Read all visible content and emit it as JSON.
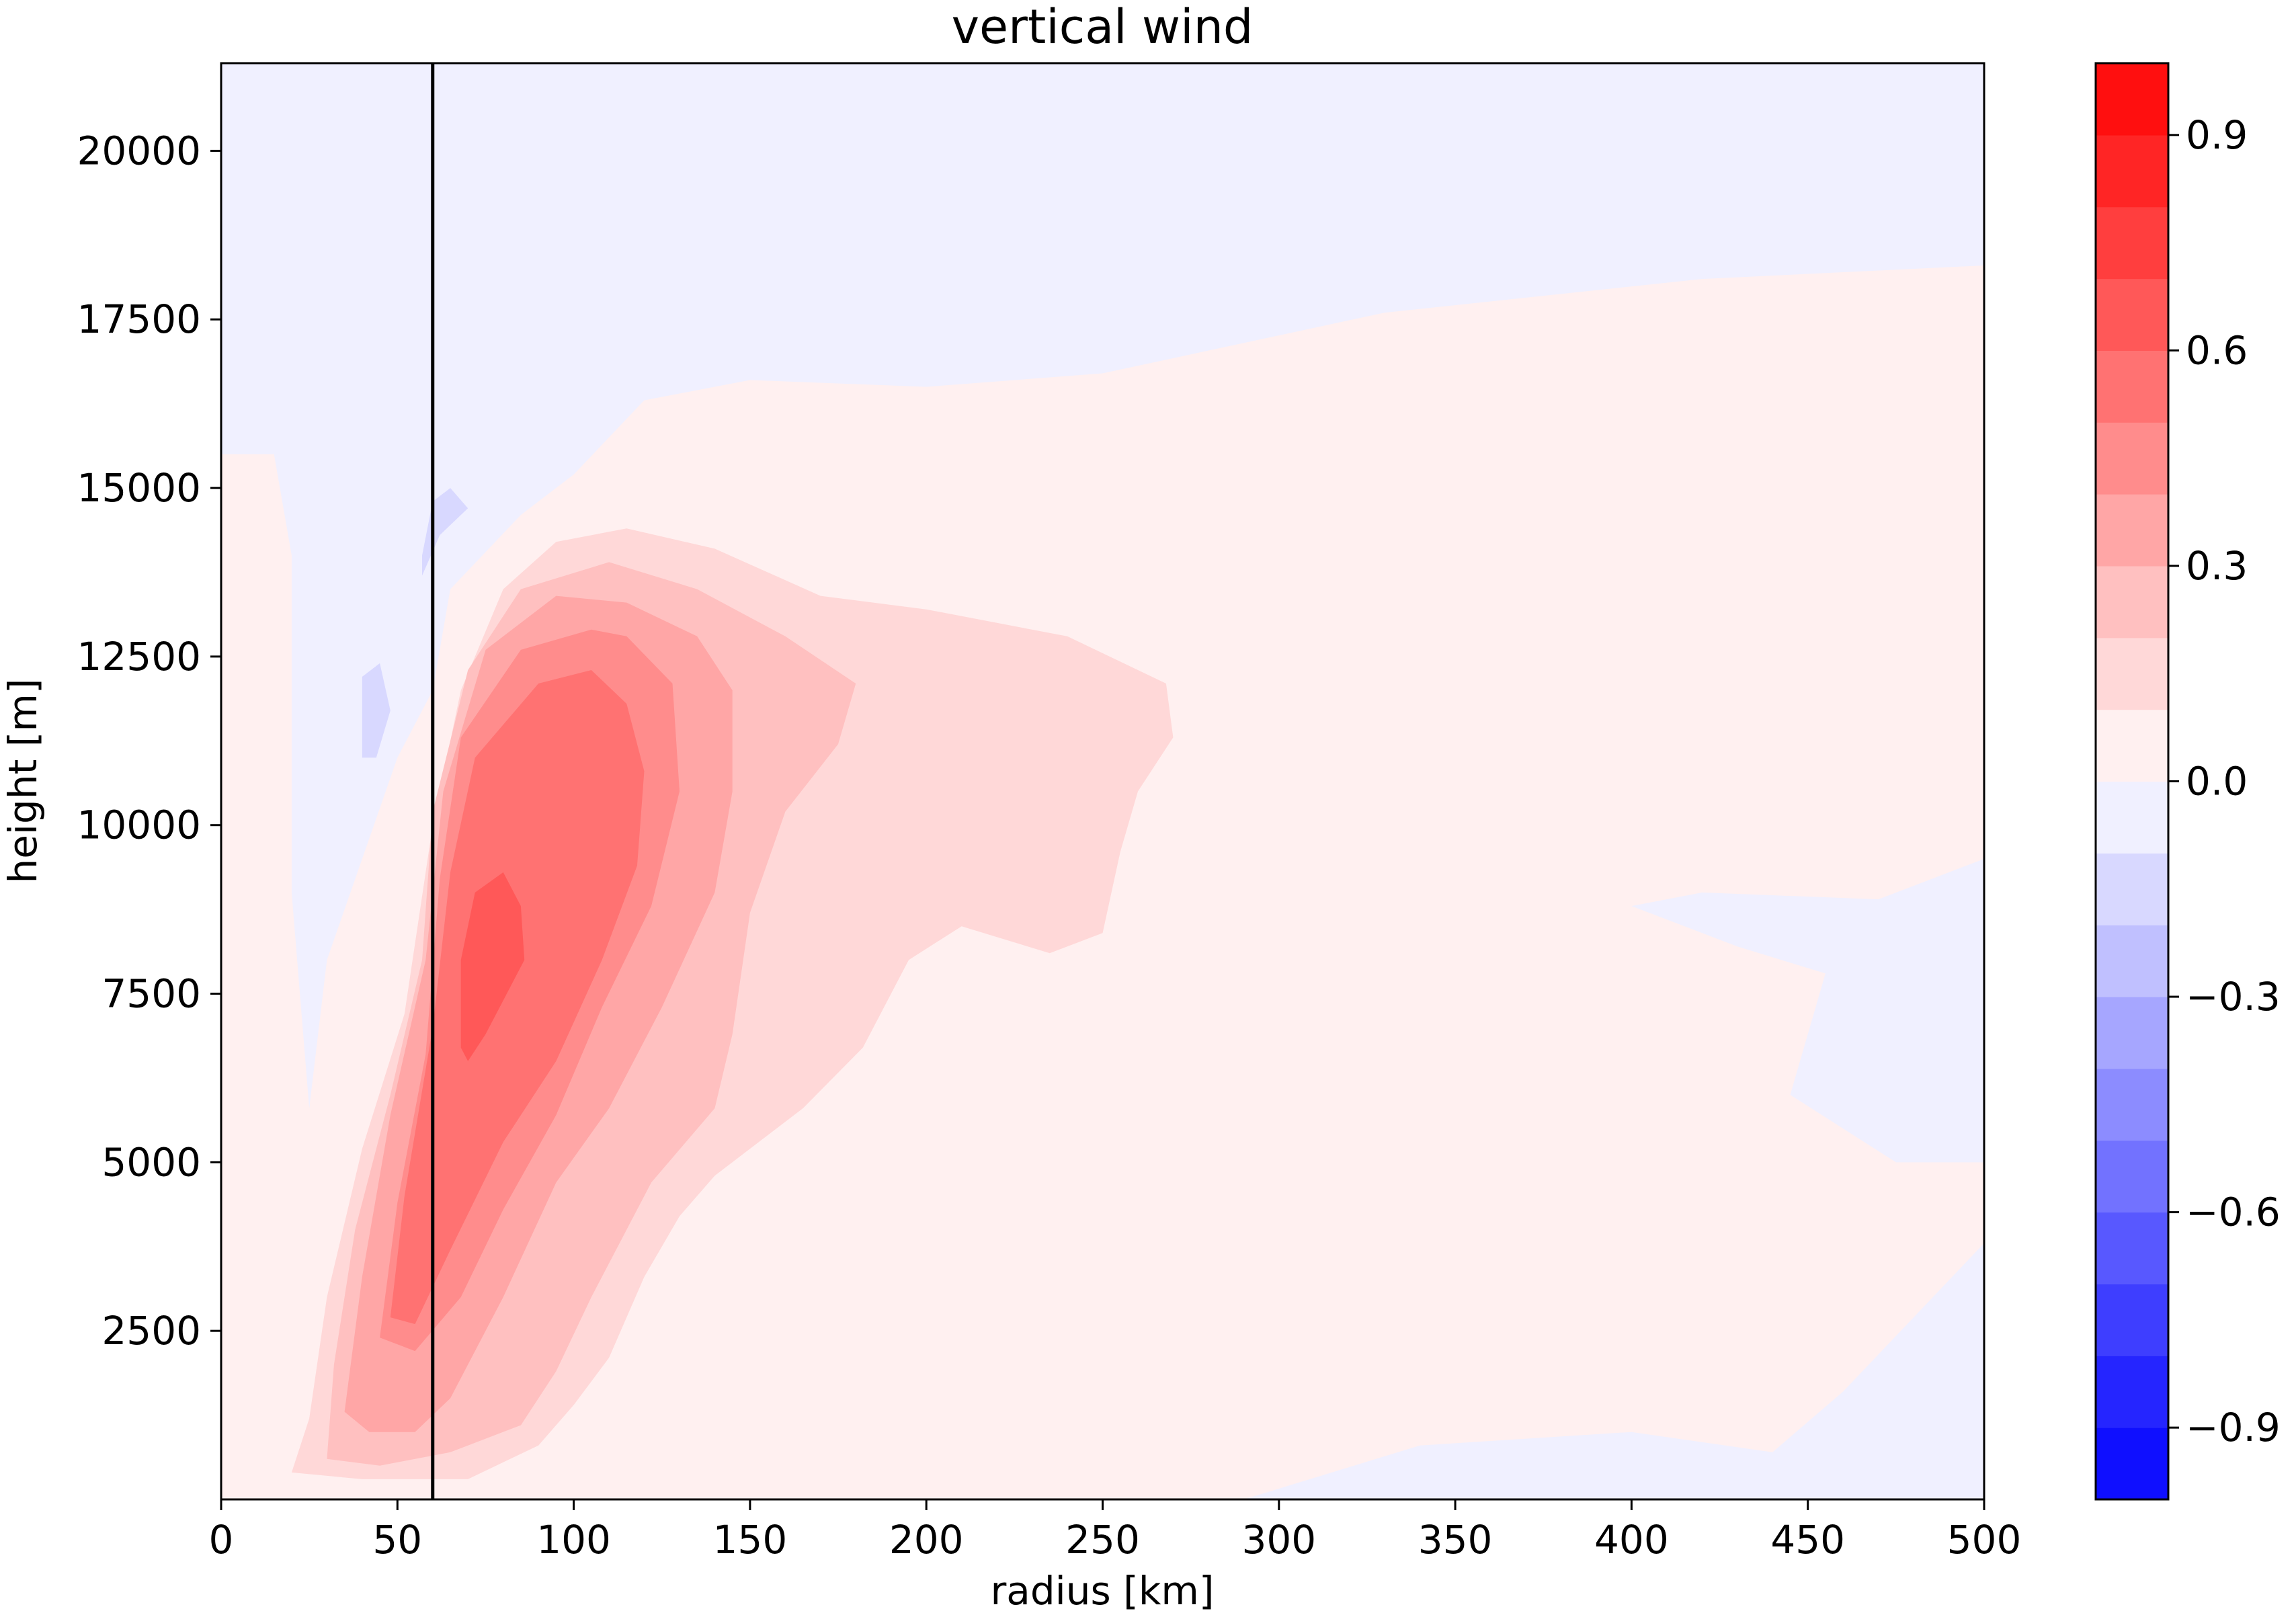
{
  "chart_data": {
    "type": "heatmap",
    "subtype": "filled-contour",
    "title": "vertical wind",
    "xlabel": "radius [km]",
    "ylabel": "height [m]",
    "xlim": [
      0,
      500
    ],
    "ylim": [
      0,
      21300
    ],
    "x_ticks": [
      0,
      50,
      100,
      150,
      200,
      250,
      300,
      350,
      400,
      450,
      500
    ],
    "y_ticks": [
      2500,
      5000,
      7500,
      10000,
      12500,
      15000,
      17500,
      20000
    ],
    "colorbar": {
      "levels": [
        -1.0,
        -0.9,
        -0.8,
        -0.7,
        -0.6,
        -0.5,
        -0.4,
        -0.3,
        -0.2,
        -0.1,
        0.0,
        0.1,
        0.2,
        0.3,
        0.4,
        0.5,
        0.6,
        0.7,
        0.8,
        0.9,
        1.0
      ],
      "tick_values": [
        -0.9,
        -0.6,
        -0.3,
        0.0,
        0.3,
        0.6,
        0.9
      ],
      "tick_labels": [
        "−0.9",
        "−0.6",
        "−0.3",
        "0.0",
        "0.3",
        "0.6",
        "0.9"
      ],
      "colormap": "bwr",
      "colors": [
        "#0f0fff",
        "#2525ff",
        "#3e3eff",
        "#5858ff",
        "#7272ff",
        "#8c8cff",
        "#a6a6ff",
        "#c0c0ff",
        "#d8d8ff",
        "#f0f0ff",
        "#fff0f0",
        "#ffd8d8",
        "#ffc0c0",
        "#ffa6a6",
        "#ff8c8c",
        "#ff7272",
        "#ff5858",
        "#ff3e3e",
        "#ff2525",
        "#ff0f0f"
      ]
    },
    "reference_line": {
      "orientation": "vertical",
      "x": 60,
      "color": "#000000"
    },
    "background_level": 0.05,
    "regions": [
      {
        "name": "upper-weak-downdraft",
        "value": -0.05,
        "outline": [
          [
            0,
            21300
          ],
          [
            500,
            21300
          ],
          [
            500,
            18300
          ],
          [
            420,
            18100
          ],
          [
            330,
            17600
          ],
          [
            250,
            16700
          ],
          [
            200,
            16500
          ],
          [
            150,
            16600
          ],
          [
            120,
            16300
          ],
          [
            100,
            15200
          ],
          [
            85,
            14600
          ],
          [
            65,
            13500
          ],
          [
            60,
            12000
          ],
          [
            50,
            11000
          ],
          [
            30,
            8000
          ],
          [
            25,
            5800
          ],
          [
            20,
            9000
          ],
          [
            20,
            14000
          ],
          [
            15,
            15500
          ],
          [
            0,
            15500
          ]
        ]
      },
      {
        "name": "outer-mid-downdraft",
        "value": -0.05,
        "outline": [
          [
            500,
            9500
          ],
          [
            470,
            8900
          ],
          [
            420,
            9000
          ],
          [
            400,
            8800
          ],
          [
            430,
            8200
          ],
          [
            455,
            7800
          ],
          [
            445,
            6000
          ],
          [
            475,
            5000
          ],
          [
            500,
            5000
          ]
        ]
      },
      {
        "name": "surface-downdraft",
        "value": -0.05,
        "outline": [
          [
            290,
            0
          ],
          [
            340,
            800
          ],
          [
            400,
            1000
          ],
          [
            440,
            700
          ],
          [
            460,
            1600
          ],
          [
            500,
            3800
          ],
          [
            500,
            0
          ]
        ]
      },
      {
        "name": "updraft-0.1",
        "value": 0.15,
        "outline": [
          [
            20,
            400
          ],
          [
            25,
            1200
          ],
          [
            30,
            3000
          ],
          [
            40,
            5200
          ],
          [
            52,
            7200
          ],
          [
            60,
            10000
          ],
          [
            68,
            12000
          ],
          [
            80,
            13500
          ],
          [
            95,
            14200
          ],
          [
            115,
            14400
          ],
          [
            140,
            14100
          ],
          [
            170,
            13400
          ],
          [
            200,
            13200
          ],
          [
            240,
            12800
          ],
          [
            268,
            12100
          ],
          [
            270,
            11300
          ],
          [
            260,
            10500
          ],
          [
            255,
            9600
          ],
          [
            250,
            8400
          ],
          [
            235,
            8100
          ],
          [
            210,
            8500
          ],
          [
            195,
            8000
          ],
          [
            182,
            6700
          ],
          [
            165,
            5800
          ],
          [
            140,
            4800
          ],
          [
            130,
            4200
          ],
          [
            120,
            3300
          ],
          [
            110,
            2100
          ],
          [
            100,
            1400
          ],
          [
            90,
            800
          ],
          [
            70,
            300
          ],
          [
            40,
            300
          ]
        ]
      },
      {
        "name": "updraft-0.2",
        "value": 0.25,
        "outline": [
          [
            30,
            600
          ],
          [
            32,
            2000
          ],
          [
            38,
            4000
          ],
          [
            48,
            6000
          ],
          [
            57,
            8000
          ],
          [
            60,
            10200
          ],
          [
            70,
            12300
          ],
          [
            85,
            13500
          ],
          [
            110,
            13900
          ],
          [
            135,
            13500
          ],
          [
            160,
            12800
          ],
          [
            180,
            12100
          ],
          [
            175,
            11200
          ],
          [
            160,
            10200
          ],
          [
            150,
            8700
          ],
          [
            145,
            6900
          ],
          [
            140,
            5800
          ],
          [
            122,
            4700
          ],
          [
            105,
            3000
          ],
          [
            95,
            1900
          ],
          [
            85,
            1100
          ],
          [
            65,
            700
          ],
          [
            45,
            500
          ]
        ]
      },
      {
        "name": "updraft-0.3",
        "value": 0.35,
        "outline": [
          [
            35,
            1300
          ],
          [
            40,
            3300
          ],
          [
            48,
            5700
          ],
          [
            58,
            8000
          ],
          [
            63,
            10500
          ],
          [
            75,
            12600
          ],
          [
            95,
            13400
          ],
          [
            115,
            13300
          ],
          [
            135,
            12800
          ],
          [
            145,
            12000
          ],
          [
            145,
            10500
          ],
          [
            140,
            9000
          ],
          [
            125,
            7300
          ],
          [
            110,
            5800
          ],
          [
            95,
            4700
          ],
          [
            80,
            3000
          ],
          [
            65,
            1500
          ],
          [
            55,
            1000
          ],
          [
            42,
            1000
          ]
        ]
      },
      {
        "name": "updraft-0.4",
        "value": 0.45,
        "outline": [
          [
            45,
            2400
          ],
          [
            50,
            4400
          ],
          [
            58,
            6600
          ],
          [
            62,
            9200
          ],
          [
            68,
            11300
          ],
          [
            85,
            12600
          ],
          [
            105,
            12900
          ],
          [
            115,
            12800
          ],
          [
            128,
            12100
          ],
          [
            130,
            10500
          ],
          [
            122,
            8800
          ],
          [
            108,
            7300
          ],
          [
            95,
            5700
          ],
          [
            80,
            4300
          ],
          [
            68,
            3000
          ],
          [
            55,
            2200
          ]
        ]
      },
      {
        "name": "updraft-0.5",
        "value": 0.55,
        "outline": [
          [
            48,
            2700
          ],
          [
            52,
            4500
          ],
          [
            60,
            7000
          ],
          [
            65,
            9300
          ],
          [
            72,
            11000
          ],
          [
            90,
            12100
          ],
          [
            105,
            12300
          ],
          [
            115,
            11800
          ],
          [
            120,
            10800
          ],
          [
            118,
            9400
          ],
          [
            108,
            8000
          ],
          [
            95,
            6500
          ],
          [
            80,
            5300
          ],
          [
            65,
            3700
          ],
          [
            55,
            2600
          ]
        ]
      },
      {
        "name": "updraft-0.6",
        "value": 0.65,
        "outline": [
          [
            68,
            6700
          ],
          [
            68,
            8000
          ],
          [
            72,
            9000
          ],
          [
            80,
            9300
          ],
          [
            85,
            8800
          ],
          [
            86,
            8000
          ],
          [
            80,
            7400
          ],
          [
            75,
            6900
          ],
          [
            70,
            6500
          ]
        ]
      },
      {
        "name": "upper-updraft-band",
        "value": 0.05,
        "outline": [
          [
            405,
            14800
          ],
          [
            440,
            15400
          ],
          [
            475,
            15700
          ],
          [
            500,
            15800
          ],
          [
            500,
            14500
          ],
          [
            460,
            14500
          ]
        ]
      },
      {
        "name": "small-downdraft-cell-1",
        "value": -0.15,
        "outline": [
          [
            57,
            14000
          ],
          [
            60,
            14800
          ],
          [
            65,
            15000
          ],
          [
            70,
            14700
          ],
          [
            62,
            14300
          ],
          [
            57,
            13700
          ]
        ]
      },
      {
        "name": "small-downdraft-cell-2",
        "value": -0.15,
        "outline": [
          [
            40,
            11000
          ],
          [
            40,
            12200
          ],
          [
            45,
            12400
          ],
          [
            48,
            11700
          ],
          [
            44,
            11000
          ]
        ]
      }
    ]
  }
}
